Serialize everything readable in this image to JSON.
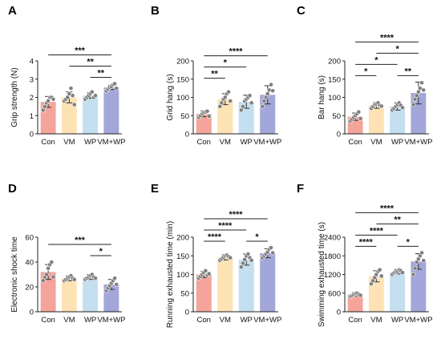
{
  "colors": {
    "Con": "#f4a49a",
    "VM": "#fde2b4",
    "WP": "#c3dff0",
    "VM+WP": "#a3a6d8",
    "axis": "#222222",
    "point": "#7f7f7f"
  },
  "chart_data": [
    {
      "panel": "A",
      "type": "bar",
      "categories": [
        "Con",
        "VM",
        "WP",
        "VM+WP"
      ],
      "values": [
        1.75,
        2.0,
        2.1,
        2.55
      ],
      "errors": [
        0.3,
        0.3,
        0.15,
        0.12
      ],
      "points": [
        [
          1.3,
          1.5,
          1.7,
          1.8,
          2.0,
          2.0,
          1.9
        ],
        [
          1.8,
          1.9,
          2.0,
          2.2,
          2.5,
          2.1,
          1.6
        ],
        [
          1.9,
          2.0,
          2.1,
          2.2,
          2.3,
          2.0,
          2.1
        ],
        [
          2.35,
          2.45,
          2.55,
          2.6,
          2.7,
          2.75,
          2.5
        ]
      ],
      "ylabel": "Grip strength (N)",
      "ylim": [
        0,
        4
      ],
      "yticks": [
        "0",
        "1",
        "2",
        "3",
        "4"
      ],
      "significance": [
        {
          "from": 0,
          "to": 3,
          "label": "***"
        },
        {
          "from": 1,
          "to": 3,
          "label": "**"
        },
        {
          "from": 2,
          "to": 3,
          "label": "**"
        }
      ]
    },
    {
      "panel": "B",
      "type": "bar",
      "categories": [
        "Con",
        "VM",
        "WP",
        "VM+WP"
      ],
      "values": [
        55,
        95,
        88,
        107
      ],
      "errors": [
        8,
        15,
        18,
        25
      ],
      "points": [
        [
          45,
          50,
          55,
          58,
          60,
          62,
          48
        ],
        [
          75,
          85,
          95,
          100,
          110,
          115,
          90
        ],
        [
          65,
          75,
          90,
          95,
          100,
          105,
          85
        ],
        [
          75,
          90,
          100,
          110,
          120,
          135,
          118
        ]
      ],
      "ylabel": "Grid hang (s)",
      "ylim": [
        0,
        200
      ],
      "yticks": [
        "0",
        "50",
        "100",
        "150",
        "200"
      ],
      "significance": [
        {
          "from": 0,
          "to": 3,
          "label": "****"
        },
        {
          "from": 0,
          "to": 2,
          "label": "*"
        },
        {
          "from": 0,
          "to": 1,
          "label": "**"
        }
      ]
    },
    {
      "panel": "C",
      "type": "bar",
      "categories": [
        "Con",
        "VM",
        "WP",
        "VM+WP"
      ],
      "values": [
        47,
        78,
        75,
        112
      ],
      "errors": [
        10,
        8,
        10,
        30
      ],
      "points": [
        [
          35,
          40,
          45,
          50,
          55,
          60,
          42
        ],
        [
          70,
          75,
          80,
          82,
          85,
          78,
          76
        ],
        [
          65,
          70,
          75,
          80,
          85,
          78,
          72
        ],
        [
          80,
          95,
          105,
          115,
          125,
          140,
          120
        ]
      ],
      "ylabel": "Bar hang (s)",
      "ylim": [
        0,
        200
      ],
      "yticks": [
        "0",
        "50",
        "100",
        "150",
        "200"
      ],
      "significance": [
        {
          "from": 0,
          "to": 3,
          "label": "****"
        },
        {
          "from": 1,
          "to": 3,
          "label": "*"
        },
        {
          "from": 0,
          "to": 2,
          "label": "*"
        },
        {
          "from": 0,
          "to": 1,
          "label": "*"
        },
        {
          "from": 2,
          "to": 3,
          "label": "**"
        }
      ]
    },
    {
      "panel": "D",
      "type": "bar",
      "categories": [
        "Con",
        "VM",
        "WP",
        "VM+WP"
      ],
      "values": [
        32,
        27,
        28,
        22
      ],
      "errors": [
        6,
        2,
        2,
        4
      ],
      "points": [
        [
          25,
          28,
          30,
          35,
          38,
          40,
          28
        ],
        [
          25,
          26,
          27,
          28,
          29,
          27,
          26
        ],
        [
          26,
          27,
          28,
          29,
          30,
          28,
          27
        ],
        [
          17,
          19,
          21,
          23,
          25,
          27,
          22
        ]
      ],
      "ylabel": "Electronic shock time",
      "ylim": [
        0,
        60
      ],
      "yticks": [
        "0",
        "20",
        "40",
        "60"
      ],
      "significance": [
        {
          "from": 0,
          "to": 3,
          "label": "***"
        },
        {
          "from": 2,
          "to": 3,
          "label": "*"
        }
      ]
    },
    {
      "panel": "E",
      "type": "bar",
      "categories": [
        "Con",
        "VM",
        "WP",
        "VM+WP"
      ],
      "values": [
        100,
        146,
        140,
        157
      ],
      "errors": [
        8,
        7,
        15,
        12
      ],
      "points": [
        [
          90,
          95,
          100,
          105,
          110,
          98,
          102
        ],
        [
          138,
          142,
          146,
          150,
          152,
          148,
          145
        ],
        [
          120,
          130,
          140,
          150,
          155,
          145,
          138
        ],
        [
          145,
          150,
          155,
          160,
          168,
          172,
          158
        ]
      ],
      "ylabel": "Running exhausted time (min)",
      "ylim": [
        0,
        200
      ],
      "yticks": [
        "0",
        "50",
        "100",
        "150",
        "200"
      ],
      "significance": [
        {
          "from": 0,
          "to": 3,
          "label": "****"
        },
        {
          "from": 0,
          "to": 2,
          "label": "****"
        },
        {
          "from": 0,
          "to": 1,
          "label": "****"
        },
        {
          "from": 2,
          "to": 3,
          "label": "*"
        }
      ]
    },
    {
      "panel": "F",
      "type": "bar",
      "categories": [
        "Con",
        "VM",
        "WP",
        "VM+WP"
      ],
      "values": [
        560,
        1140,
        1290,
        1620
      ],
      "errors": [
        60,
        180,
        70,
        250
      ],
      "points": [
        [
          490,
          520,
          550,
          580,
          600,
          560,
          530
        ],
        [
          900,
          1000,
          1100,
          1200,
          1300,
          1350,
          1150
        ],
        [
          1200,
          1250,
          1280,
          1300,
          1350,
          1320,
          1260
        ],
        [
          1200,
          1400,
          1600,
          1700,
          1800,
          1900,
          1650
        ]
      ],
      "ylabel": "Swimming exhausted time (s)",
      "ylim": [
        0,
        2400
      ],
      "yticks": [
        "0",
        "600",
        "1200",
        "1800",
        "2400"
      ],
      "significance": [
        {
          "from": 0,
          "to": 3,
          "label": "****"
        },
        {
          "from": 1,
          "to": 3,
          "label": "**"
        },
        {
          "from": 0,
          "to": 2,
          "label": "****"
        },
        {
          "from": 0,
          "to": 1,
          "label": "****"
        },
        {
          "from": 2,
          "to": 3,
          "label": "*"
        }
      ]
    }
  ]
}
